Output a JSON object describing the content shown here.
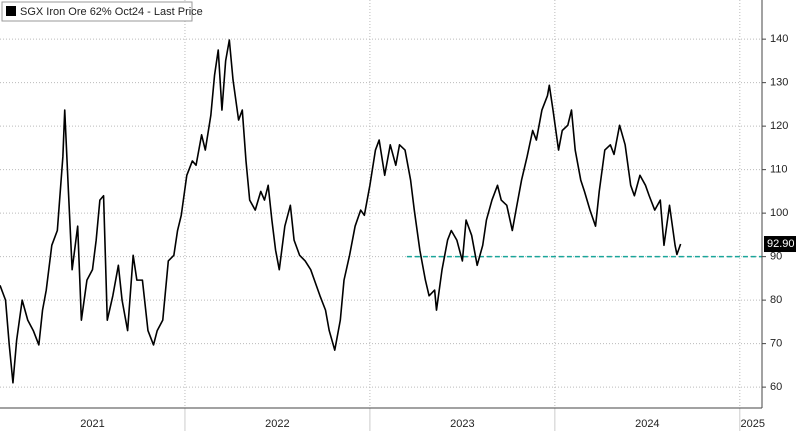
{
  "chart_data": {
    "type": "line",
    "x": [
      2021.0,
      2021.03,
      2021.05,
      2021.07,
      2021.09,
      2021.12,
      2021.15,
      2021.18,
      2021.21,
      2021.23,
      2021.25,
      2021.28,
      2021.31,
      2021.34,
      2021.35,
      2021.37,
      2021.39,
      2021.42,
      2021.44,
      2021.47,
      2021.5,
      2021.52,
      2021.54,
      2021.56,
      2021.58,
      2021.61,
      2021.64,
      2021.66,
      2021.69,
      2021.72,
      2021.74,
      2021.77,
      2021.8,
      2021.83,
      2021.85,
      2021.88,
      2021.91,
      2021.94,
      2021.96,
      2021.98,
      2022.01,
      2022.04,
      2022.06,
      2022.09,
      2022.11,
      2022.14,
      2022.16,
      2022.18,
      2022.2,
      2022.22,
      2022.24,
      2022.26,
      2022.29,
      2022.31,
      2022.33,
      2022.35,
      2022.38,
      2022.41,
      2022.43,
      2022.45,
      2022.47,
      2022.49,
      2022.51,
      2022.54,
      2022.57,
      2022.59,
      2022.62,
      2022.65,
      2022.68,
      2022.7,
      2022.73,
      2022.76,
      2022.78,
      2022.81,
      2022.84,
      2022.86,
      2022.89,
      2022.92,
      2022.95,
      2022.97,
      2023.0,
      2023.03,
      2023.05,
      2023.08,
      2023.11,
      2023.14,
      2023.16,
      2023.19,
      2023.22,
      2023.24,
      2023.27,
      2023.3,
      2023.32,
      2023.35,
      2023.36,
      2023.39,
      2023.42,
      2023.44,
      2023.47,
      2023.5,
      2023.52,
      2023.55,
      2023.58,
      2023.61,
      2023.63,
      2023.66,
      2023.69,
      2023.71,
      2023.74,
      2023.77,
      2023.79,
      2023.82,
      2023.85,
      2023.88,
      2023.9,
      2023.93,
      2023.96,
      2023.97,
      2023.99,
      2024.02,
      2024.04,
      2024.07,
      2024.09,
      2024.11,
      2024.14,
      2024.16,
      2024.19,
      2024.22,
      2024.24,
      2024.27,
      2024.3,
      2024.32,
      2024.35,
      2024.38,
      2024.41,
      2024.43,
      2024.46,
      2024.49,
      2024.51,
      2024.54,
      2024.57,
      2024.59,
      2024.62,
      2024.65,
      2024.66,
      2024.68
    ],
    "series": [
      {
        "name": "SGX Iron Ore 62% Oct24 - Last Price",
        "color": "#000000",
        "values": [
          83.4,
          80,
          69.7,
          61,
          70.8,
          80,
          75.4,
          73,
          69.7,
          77.7,
          82.3,
          92.6,
          96,
          113,
          123.7,
          105,
          87,
          97,
          75.4,
          84.6,
          87,
          93.8,
          103,
          104,
          75.4,
          81,
          88,
          80,
          73,
          90.3,
          84.6,
          84.6,
          73,
          69.7,
          73,
          75.4,
          89,
          90.3,
          96,
          99.5,
          108.7,
          112,
          111,
          118,
          114.5,
          122.5,
          131.7,
          137.5,
          123.7,
          135,
          139.8,
          130.6,
          121.4,
          123.7,
          112,
          103,
          100.7,
          105,
          103,
          106.4,
          98.4,
          91.5,
          87,
          97,
          101.8,
          93.8,
          90.3,
          89,
          87,
          84.6,
          81,
          77.7,
          73,
          68.5,
          75.4,
          84.6,
          90.3,
          97,
          100.7,
          99.5,
          106.4,
          114.5,
          116.8,
          108.7,
          115.7,
          111,
          115.7,
          114.5,
          107.6,
          100.7,
          91.5,
          84.6,
          81,
          82.3,
          77.7,
          87,
          93.8,
          96,
          93.8,
          89,
          98.4,
          94.9,
          88,
          92.6,
          98.4,
          103,
          106.4,
          103,
          101.8,
          96,
          100.7,
          107.6,
          113,
          119,
          116.8,
          123.7,
          127,
          129.4,
          123.7,
          114.5,
          119,
          120.2,
          123.7,
          114.5,
          107.6,
          105,
          100.7,
          97,
          105,
          114.5,
          115.7,
          113.5,
          120.2,
          115.7,
          106.4,
          104,
          108.7,
          106.4,
          104,
          100.7,
          103,
          92.6,
          101.8,
          92.6,
          90.5,
          92.9
        ]
      }
    ],
    "last_price": {
      "value": 92.9,
      "label": "92.90"
    },
    "reference_line": {
      "value": 90,
      "start": 2023.2,
      "color": "#1aa59a"
    },
    "xlim": [
      2021,
      2025.12
    ],
    "xticks": [
      {
        "value": 2021.5,
        "label": "2021"
      },
      {
        "value": 2022.5,
        "label": "2022"
      },
      {
        "value": 2023.5,
        "label": "2023"
      },
      {
        "value": 2024.5,
        "label": "2024"
      },
      {
        "value": 2025.07,
        "label": "2025"
      }
    ],
    "xgrid": [
      2022,
      2023,
      2024,
      2025
    ],
    "ylim": [
      55.2,
      149
    ],
    "yticks": [
      60,
      70,
      80,
      90,
      100,
      110,
      120,
      130,
      140
    ],
    "grid": true
  }
}
